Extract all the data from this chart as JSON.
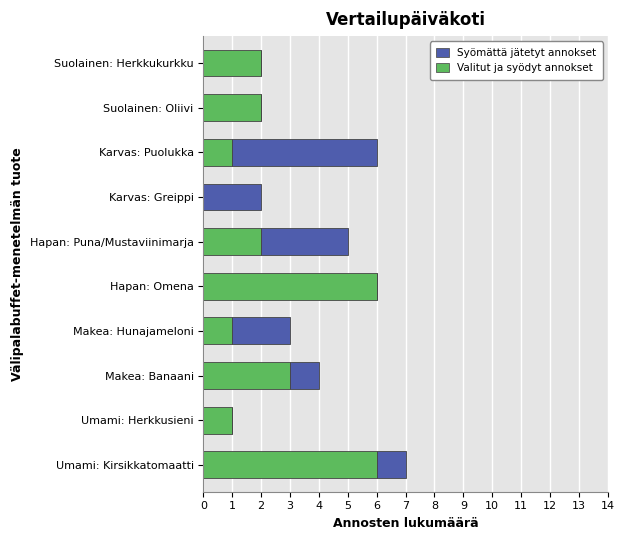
{
  "title": "Vertailupäiväkoti",
  "xlabel": "Annosten lukumäärä",
  "ylabel": "Välipalabuffet-menetelmän tuote",
  "categories": [
    "Suolainen: Herkkukurkku",
    "Suolainen: Oliivi",
    "Karvas: Puolukka",
    "Karvas: Greippi",
    "Hapan: Puna/Mustaviinimarja",
    "Hapan: Omena",
    "Makea: Hunajameloni",
    "Makea: Banaani",
    "Umami: Herkkusieni",
    "Umami: Kirsikkatomaatti"
  ],
  "valitut_syodyt": [
    2,
    2,
    1,
    0,
    2,
    6,
    1,
    3,
    1,
    6
  ],
  "syomatta_jatetyt": [
    0,
    0,
    5,
    2,
    3,
    0,
    2,
    1,
    0,
    1
  ],
  "color_green": "#5DBB5D",
  "color_blue": "#4F5DAD",
  "legend_eaten": "Valitut ja syödyt annokset",
  "legend_not_eaten": "Syömättä jätetyt annokset",
  "xlim": [
    0,
    14
  ],
  "xticks": [
    0,
    1,
    2,
    3,
    4,
    5,
    6,
    7,
    8,
    9,
    10,
    11,
    12,
    13,
    14
  ],
  "bg_color": "#E5E5E5",
  "bar_height": 0.6,
  "title_fontsize": 12,
  "label_fontsize": 9,
  "tick_fontsize": 8
}
